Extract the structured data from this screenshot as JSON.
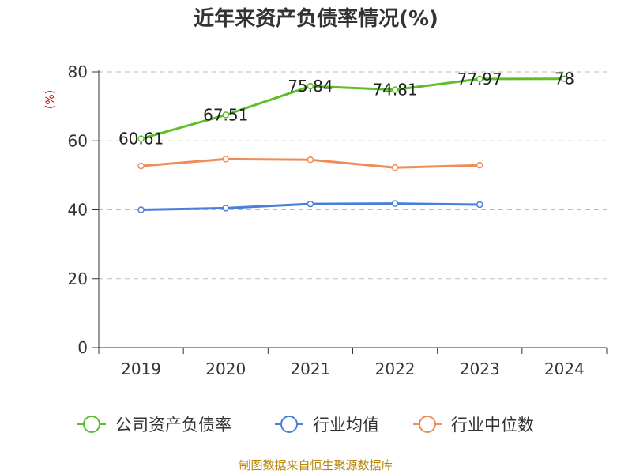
{
  "chart_data": {
    "type": "line",
    "title": "近年来资产负债率情况(%)",
    "ylabel": "(%)",
    "ylim": [
      0,
      80
    ],
    "yticks": [
      "0",
      "20",
      "40",
      "60",
      "80"
    ],
    "grid": true,
    "legend_position": "bottom",
    "categories": [
      "2019",
      "2020",
      "2021",
      "2022",
      "2023",
      "2024"
    ],
    "series": [
      {
        "name": "公司资产负债率",
        "color": "#5cbf29",
        "values": [
          60.61,
          67.51,
          75.84,
          74.81,
          77.97,
          78
        ],
        "labels": [
          "60.61",
          "67.51",
          "75.84",
          "74.81",
          "77.97",
          "78"
        ]
      },
      {
        "name": "行业均值",
        "color": "#4a7fd8",
        "values": [
          40.0,
          40.5,
          41.7,
          41.8,
          41.5,
          null
        ],
        "labels": []
      },
      {
        "name": "行业中位数",
        "color": "#f08c5a",
        "values": [
          52.7,
          54.7,
          54.5,
          52.2,
          52.9,
          null
        ],
        "labels": []
      }
    ]
  },
  "source_text": "制图数据来自恒生聚源数据库"
}
